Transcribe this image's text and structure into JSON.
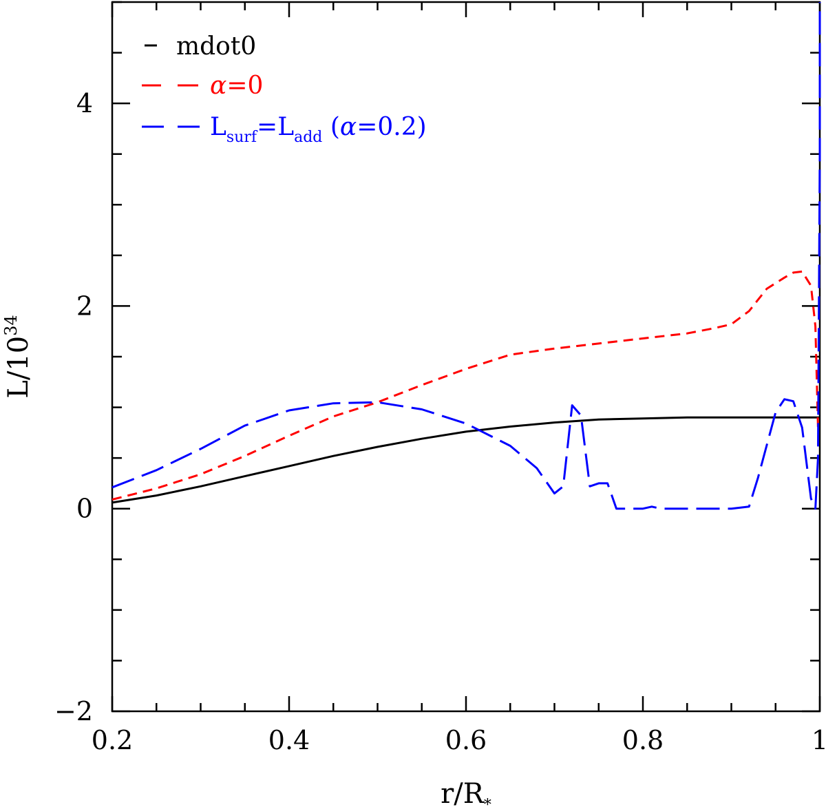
{
  "chart_data": {
    "type": "line",
    "title": "",
    "xlabel": {
      "main": "r/R",
      "sub": "*"
    },
    "ylabel": {
      "main": "L/10",
      "sup": "34"
    },
    "xlim": [
      0.2,
      1.0
    ],
    "ylim": [
      -2,
      5
    ],
    "x_major_ticks": [
      0.2,
      0.4,
      0.6,
      0.8,
      1.0
    ],
    "x_tick_labels": [
      "0.2",
      "0.4",
      "0.6",
      "0.8",
      "1"
    ],
    "x_minor_step": 0.05,
    "y_major_ticks": [
      -2,
      0,
      2,
      4
    ],
    "y_tick_labels": [
      "−2",
      "0",
      "2",
      "4"
    ],
    "y_minor_step": 0.5,
    "legend_position": "top-left",
    "series": [
      {
        "name": "mdot0",
        "legend": {
          "text": "mdot0"
        },
        "color": "#000000",
        "dash": "solid",
        "x": [
          0.2,
          0.25,
          0.3,
          0.35,
          0.4,
          0.45,
          0.5,
          0.55,
          0.6,
          0.65,
          0.7,
          0.75,
          0.8,
          0.85,
          0.9,
          0.95,
          1.0
        ],
        "y": [
          0.06,
          0.13,
          0.22,
          0.32,
          0.42,
          0.52,
          0.61,
          0.69,
          0.76,
          0.81,
          0.85,
          0.88,
          0.89,
          0.9,
          0.9,
          0.9,
          0.9
        ]
      },
      {
        "name": "alpha0",
        "legend": {
          "prefix": "α",
          "text": "=0"
        },
        "color": "#ff0000",
        "dash": "short",
        "x": [
          0.2,
          0.25,
          0.3,
          0.35,
          0.4,
          0.45,
          0.5,
          0.55,
          0.6,
          0.65,
          0.7,
          0.75,
          0.8,
          0.85,
          0.88,
          0.9,
          0.92,
          0.94,
          0.96,
          0.97,
          0.98,
          0.99,
          0.995,
          0.998
        ],
        "y": [
          0.09,
          0.2,
          0.34,
          0.52,
          0.72,
          0.91,
          1.05,
          1.22,
          1.38,
          1.52,
          1.58,
          1.63,
          1.68,
          1.73,
          1.78,
          1.82,
          1.95,
          2.17,
          2.28,
          2.33,
          2.34,
          2.2,
          1.8,
          0.8
        ]
      },
      {
        "name": "Lsurf",
        "legend": {
          "main": "L",
          "sub1": "surf",
          "eq": "=L",
          "sub2": "add",
          "extra": " (",
          "greek": "α",
          "tail": "=0.2)"
        },
        "color": "#0000ff",
        "dash": "long",
        "x": [
          0.2,
          0.25,
          0.3,
          0.35,
          0.4,
          0.45,
          0.5,
          0.55,
          0.6,
          0.65,
          0.68,
          0.7,
          0.71,
          0.72,
          0.73,
          0.74,
          0.75,
          0.76,
          0.77,
          0.8,
          0.81,
          0.82,
          0.83,
          0.9,
          0.92,
          0.93,
          0.95,
          0.96,
          0.97,
          0.98,
          0.99,
          0.995,
          0.998,
          1.0,
          1.0
        ],
        "y": [
          0.21,
          0.38,
          0.59,
          0.82,
          0.97,
          1.04,
          1.05,
          0.98,
          0.84,
          0.62,
          0.4,
          0.15,
          0.22,
          1.02,
          0.92,
          0.22,
          0.25,
          0.25,
          0.0,
          0.0,
          0.02,
          0.0,
          0.0,
          0.0,
          0.02,
          0.3,
          0.95,
          1.08,
          1.06,
          0.8,
          0.1,
          0.0,
          0.5,
          3.5,
          5.0
        ]
      }
    ]
  }
}
